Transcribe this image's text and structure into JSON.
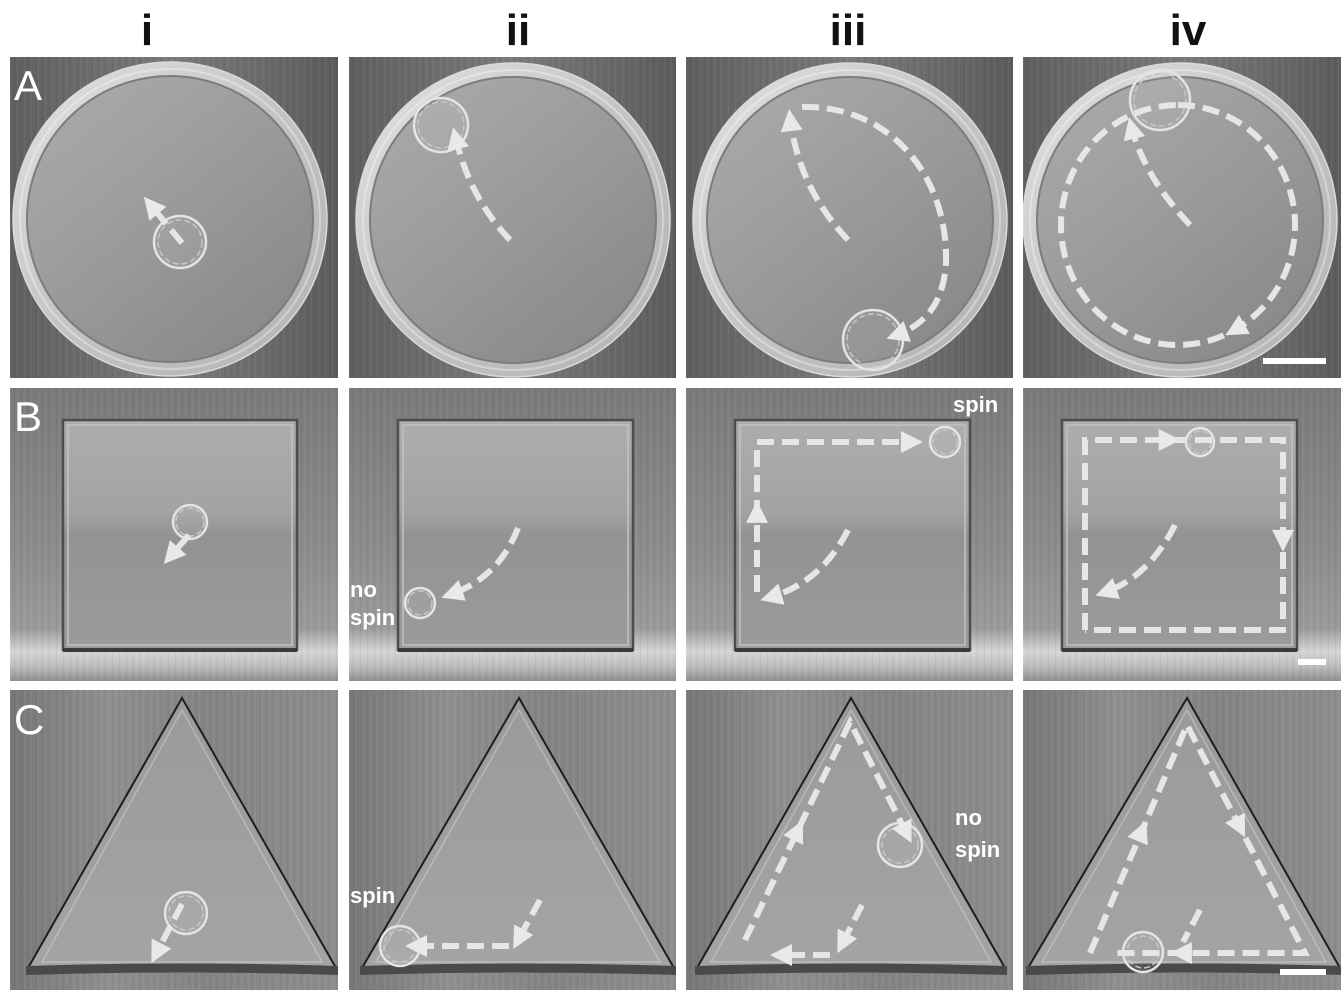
{
  "columns": [
    "i",
    "ii",
    "iii",
    "iv"
  ],
  "rows": [
    "A",
    "B",
    "C"
  ],
  "annotations": {
    "b_ii": [
      "no",
      "spin"
    ],
    "b_iii": [
      "spin"
    ],
    "c_ii": [
      "spin"
    ],
    "c_iii": [
      "no",
      "spin"
    ]
  }
}
